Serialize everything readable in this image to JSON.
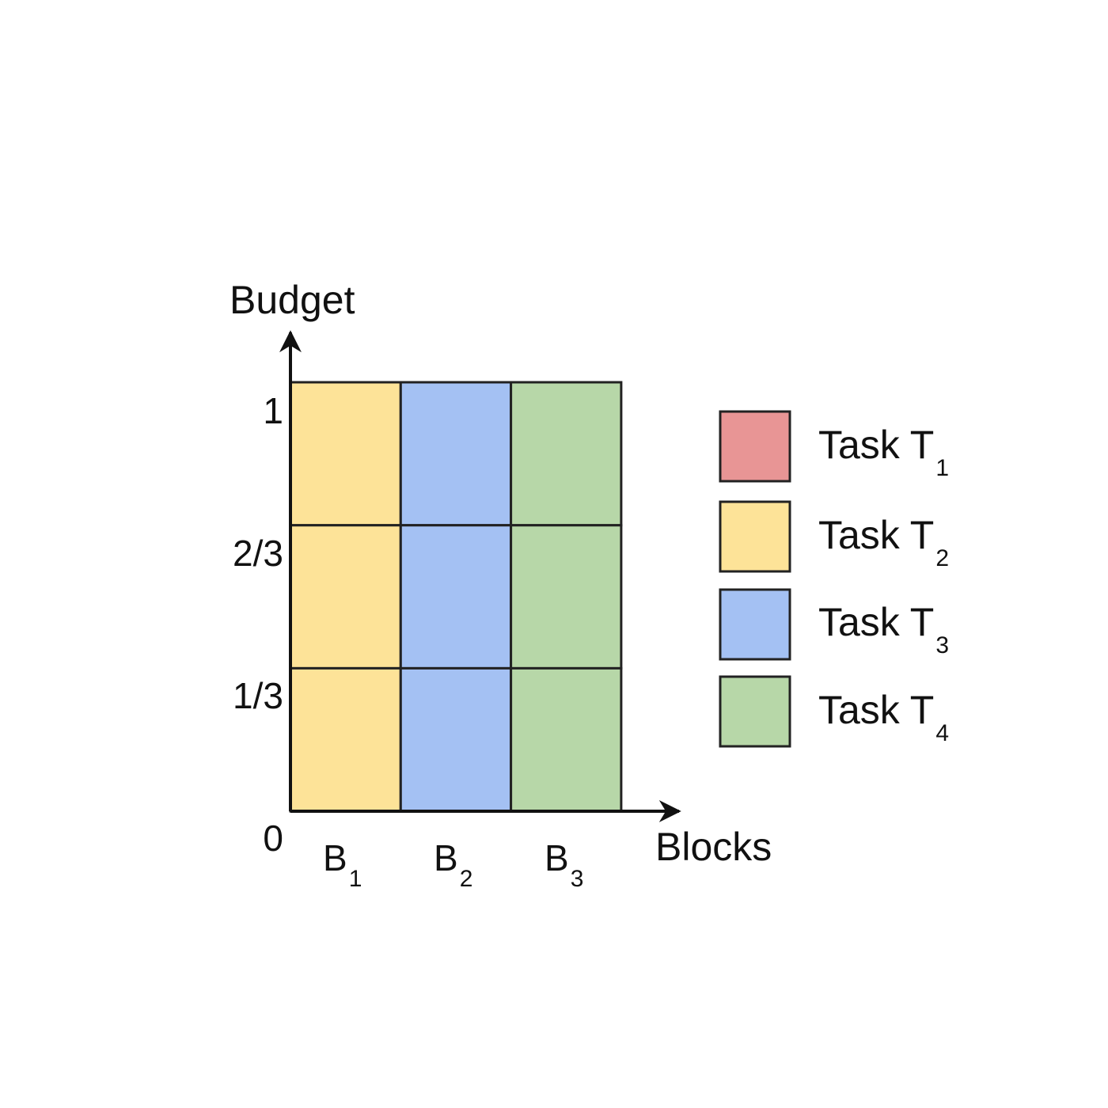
{
  "diagram": {
    "y_axis_label": "Budget",
    "x_axis_label": "Blocks",
    "y_ticks": [
      "0",
      "1/3",
      "2/3",
      "1"
    ],
    "blocks": [
      {
        "base": "B",
        "sub": "1",
        "task": "T2"
      },
      {
        "base": "B",
        "sub": "2",
        "task": "T3"
      },
      {
        "base": "B",
        "sub": "3",
        "task": "T4"
      }
    ],
    "rows_per_block": 3,
    "legend": [
      {
        "id": "T1",
        "base": "Task T",
        "sub": "1",
        "color": "#e89595"
      },
      {
        "id": "T2",
        "base": "Task T",
        "sub": "2",
        "color": "#fde398"
      },
      {
        "id": "T3",
        "base": "Task T",
        "sub": "3",
        "color": "#a4c1f3"
      },
      {
        "id": "T4",
        "base": "Task T",
        "sub": "4",
        "color": "#b7d7a8"
      }
    ]
  }
}
